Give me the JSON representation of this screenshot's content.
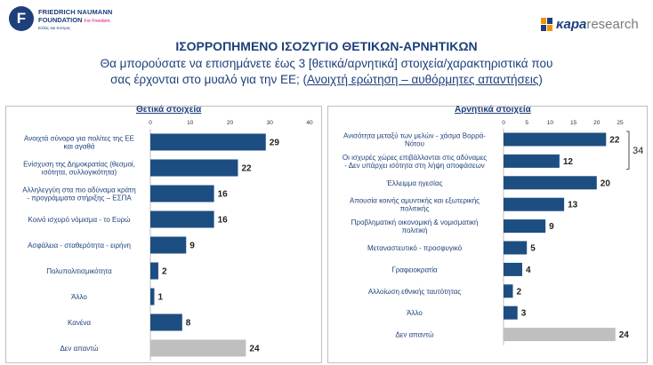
{
  "logos": {
    "fnf_mark": "F",
    "fnf_line1": "FRIEDRICH NAUMANN",
    "fnf_line2": "FOUNDATION",
    "fnf_line2_suffix": "For Freedom.",
    "fnf_line3": "Ελλάς και Κύπρος",
    "kapa_bold": "κapa",
    "kapa_rest": "research"
  },
  "header": {
    "title": "ΙΣΟΡΡΟΠΗΜΕΝΟ ΙΣΟΖΥΓΙΟ ΘΕΤΙΚΩΝ-ΑΡΝΗΤΙΚΩΝ",
    "subtitle_line1": "Θα μπορούσατε να επισημάνετε έως 3 [θετικά/αρνητικά] στοιχεία/χαρακτηριστικά που",
    "subtitle_line2_a": "σας έρχονται στο μυαλό για την ΕΕ; (",
    "subtitle_line2_b": "Ανοιχτή ερώτηση – αυθόρμητες απαντήσεις",
    "subtitle_line2_c": ")"
  },
  "colors": {
    "bar": "#1d4e82",
    "bar_other": "#bfbfbf",
    "text": "#1d3f7a"
  },
  "chart_data": [
    {
      "type": "bar",
      "orientation": "horizontal",
      "title": "Θετικά στοιχεία",
      "xlim": [
        0,
        40
      ],
      "ticks": [
        0,
        10,
        20,
        30,
        40
      ],
      "categories": [
        [
          "Ανοιχτά σύνορα για πολίτες της ΕΕ",
          "και αγαθά"
        ],
        [
          "Ενίσχυση της Δημοκρατίας (θεσμοί,",
          "ισότητα, συλλογικότητα)"
        ],
        [
          "Αλληλεγγύη στα πιο αδύναμα κράτη",
          "- προγράμματα στήριξης – ΕΣΠΑ"
        ],
        [
          "Κοινό ισχυρό νόμισμα - το Ευρώ"
        ],
        [
          "Ασφάλεια - σταθερότητα - ειρήνη"
        ],
        [
          "Πολυπολιτισμικότητα"
        ],
        [
          "Άλλο"
        ],
        [
          "Κανένα"
        ],
        [
          "Δεν απαντώ"
        ]
      ],
      "values": [
        29,
        22,
        16,
        16,
        9,
        2,
        1,
        8,
        24
      ],
      "gray": [
        false,
        false,
        false,
        false,
        false,
        false,
        false,
        false,
        true
      ]
    },
    {
      "type": "bar",
      "orientation": "horizontal",
      "title": "Αρνητικά στοιχεία",
      "xlim": [
        0,
        25
      ],
      "ticks": [
        0,
        5,
        10,
        15,
        20,
        25
      ],
      "categories": [
        [
          "Ανισότητα μεταξύ των μελών - χάσμα Βορρά-",
          "Νότου"
        ],
        [
          "Οι ισχυρές χώρες επιβάλλονται στις αδύναμες",
          "- Δεν υπάρχει ισότητα στη λήψη αποφάσεων"
        ],
        [
          "Έλλειμμα ηγεσίας"
        ],
        [
          "Απουσία κοινής αμυντικής και εξωτερικής",
          "πολιτικής"
        ],
        [
          "Προβληματική οικονομική & νομισματική",
          "πολιτική"
        ],
        [
          "Μεταναστευτικό - προσφυγικό"
        ],
        [
          "Γραφειοκρατία"
        ],
        [
          "Αλλοίωση εθνικής ταυτότητας"
        ],
        [
          "Άλλο"
        ],
        [
          "Δεν απαντώ"
        ]
      ],
      "values": [
        22,
        12,
        20,
        13,
        9,
        5,
        4,
        2,
        3,
        24
      ],
      "gray": [
        false,
        false,
        false,
        false,
        false,
        false,
        false,
        false,
        false,
        true
      ],
      "annotation": {
        "label": "34",
        "covers": [
          0,
          1
        ]
      }
    }
  ]
}
